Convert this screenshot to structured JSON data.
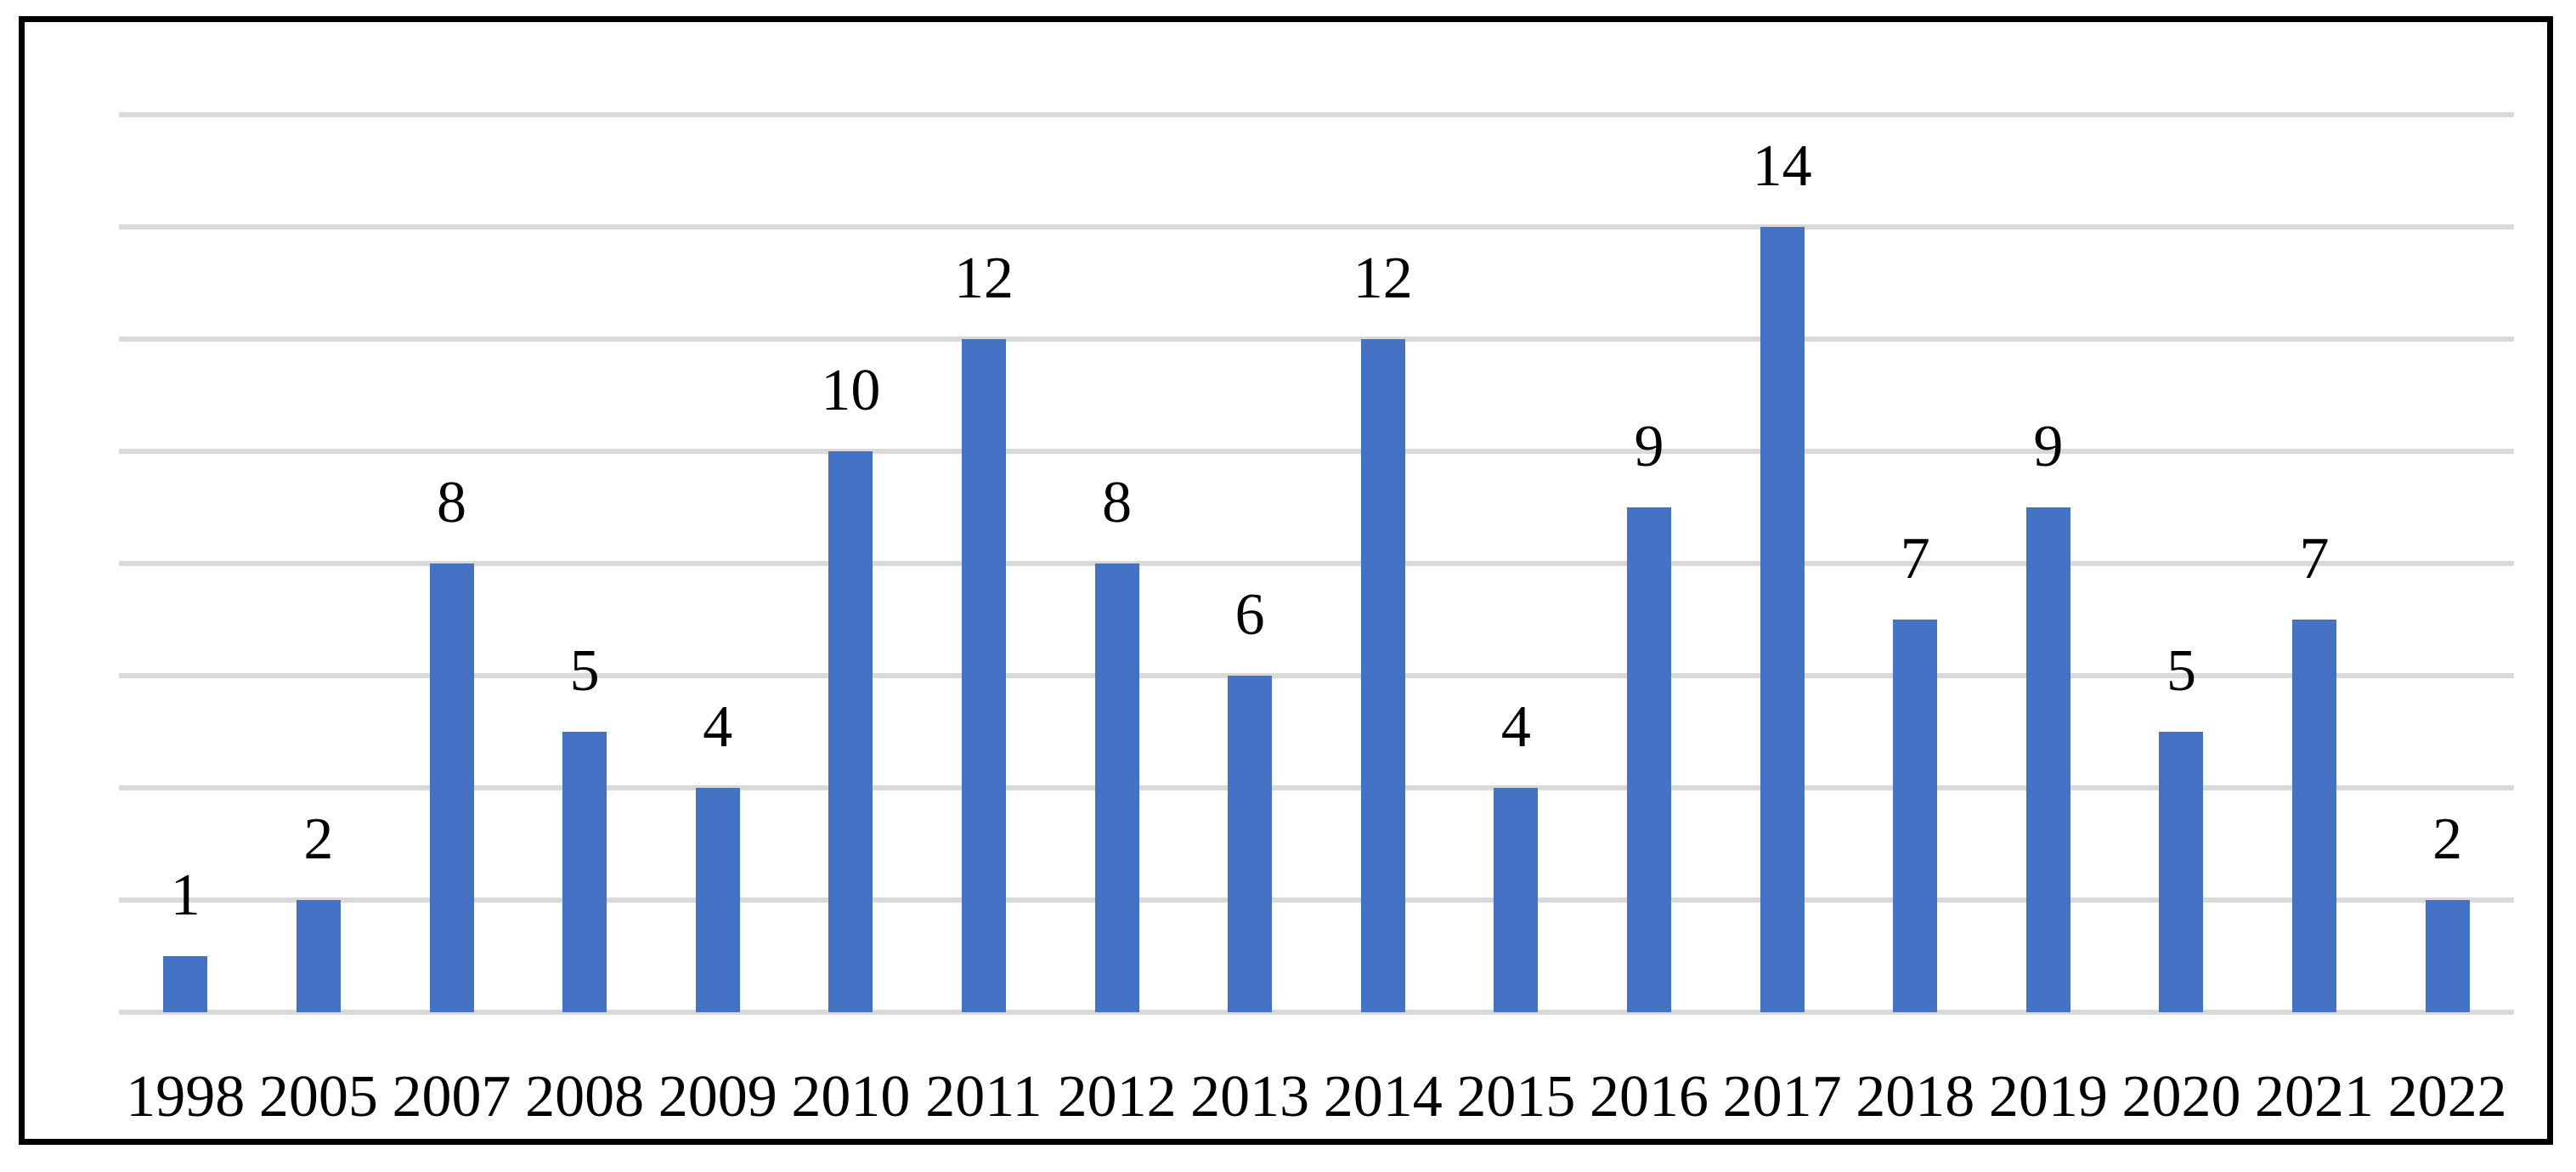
{
  "chart_data": {
    "type": "bar",
    "title": "",
    "xlabel": "",
    "ylabel": "",
    "categories": [
      "1998",
      "2005",
      "2007",
      "2008",
      "2009",
      "2010",
      "2011",
      "2012",
      "2013",
      "2014",
      "2015",
      "2016",
      "2017",
      "2018",
      "2019",
      "2020",
      "2021",
      "2022"
    ],
    "values": [
      1,
      2,
      8,
      5,
      4,
      10,
      12,
      8,
      6,
      12,
      4,
      9,
      14,
      7,
      9,
      5,
      7,
      2
    ],
    "data_labels": [
      1,
      2,
      8,
      5,
      4,
      10,
      12,
      8,
      6,
      12,
      4,
      9,
      14,
      7,
      9,
      5,
      7,
      2
    ],
    "ylim": [
      0,
      16
    ],
    "gridline_step": 2,
    "grid": "horizontal",
    "legend": "none",
    "y_tick_labels_visible": false
  },
  "colors": {
    "bar_fill": "#4472C4",
    "gridline": "#D9D9D9",
    "frame_border": "#000000",
    "label_text": "#000000",
    "background": "#FFFFFF"
  }
}
